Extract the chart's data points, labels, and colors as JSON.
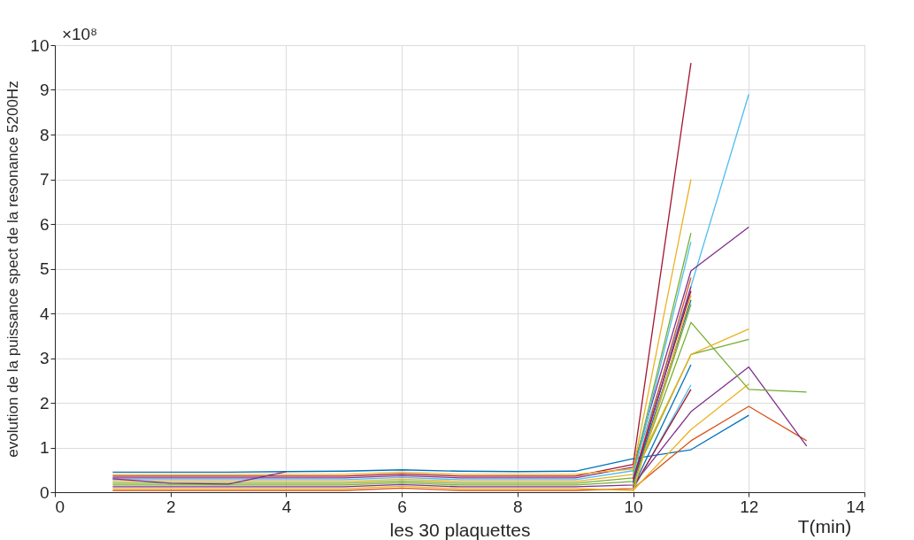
{
  "chart_data": {
    "type": "line",
    "xlabel": "les 30 plaquettes",
    "ylabel": "evolution de la puissance spect de la resonance 5200Hz",
    "annotations": [
      "T(min)",
      "×10⁸"
    ],
    "xlim": [
      0,
      14
    ],
    "xticks": [
      0,
      2,
      4,
      6,
      8,
      10,
      12,
      14
    ],
    "ylim": [
      0,
      10
    ],
    "yticks": [
      0,
      1,
      2,
      3,
      4,
      5,
      6,
      7,
      8,
      9,
      10
    ],
    "grid": true,
    "legend": false,
    "marker": "none",
    "line_style": "solid",
    "series": [
      {
        "color": "#0072bd",
        "x": [
          1,
          2,
          3,
          4,
          5,
          6,
          7,
          8,
          9,
          10,
          11,
          12
        ],
        "values": [
          0.45,
          0.45,
          0.45,
          0.46,
          0.47,
          0.5,
          0.47,
          0.46,
          0.47,
          0.75,
          0.95,
          1.72
        ]
      },
      {
        "color": "#d95319",
        "x": [
          1,
          2,
          3,
          4,
          5,
          6,
          7,
          8,
          9,
          10,
          11,
          12,
          13
        ],
        "values": [
          0.04,
          0.04,
          0.04,
          0.04,
          0.04,
          0.09,
          0.04,
          0.04,
          0.04,
          0.08,
          1.15,
          1.92,
          1.15
        ]
      },
      {
        "color": "#edb120",
        "x": [
          1,
          2,
          3,
          4,
          5,
          6,
          7,
          8,
          9,
          10,
          11,
          12
        ],
        "values": [
          0.08,
          0.08,
          0.08,
          0.08,
          0.08,
          0.13,
          0.08,
          0.08,
          0.08,
          0.04,
          1.4,
          2.42
        ]
      },
      {
        "color": "#7e2f8e",
        "x": [
          1,
          2,
          3,
          4,
          5,
          6,
          7,
          8,
          9,
          10,
          11,
          12,
          13
        ],
        "values": [
          0.12,
          0.12,
          0.12,
          0.12,
          0.12,
          0.17,
          0.12,
          0.12,
          0.12,
          0.16,
          1.8,
          2.8,
          1.03
        ]
      },
      {
        "color": "#77ac30",
        "x": [
          1,
          2,
          3,
          4,
          5,
          6,
          7,
          8,
          9,
          10,
          11,
          12,
          13
        ],
        "values": [
          0.16,
          0.16,
          0.16,
          0.16,
          0.16,
          0.21,
          0.16,
          0.16,
          0.16,
          0.24,
          3.8,
          2.3,
          2.24
        ]
      },
      {
        "color": "#77ac30",
        "x": [
          1,
          2,
          3,
          4,
          5,
          6,
          7,
          8,
          9,
          10,
          11,
          12
        ],
        "values": [
          0.2,
          0.2,
          0.2,
          0.2,
          0.2,
          0.25,
          0.2,
          0.2,
          0.2,
          0.32,
          3.08,
          3.42
        ]
      },
      {
        "color": "#edb120",
        "x": [
          1,
          2,
          3,
          4,
          5,
          6,
          7,
          8,
          9,
          10,
          11,
          12
        ],
        "values": [
          0.24,
          0.24,
          0.24,
          0.24,
          0.24,
          0.29,
          0.24,
          0.24,
          0.24,
          0.4,
          3.08,
          3.65
        ]
      },
      {
        "color": "#4dbeee",
        "x": [
          1,
          2,
          3,
          4,
          5,
          6,
          7,
          8,
          9,
          10,
          11,
          12
        ],
        "values": [
          0.28,
          0.28,
          0.28,
          0.28,
          0.28,
          0.33,
          0.28,
          0.28,
          0.28,
          0.48,
          4.6,
          8.9
        ]
      },
      {
        "color": "#7e2f8e",
        "x": [
          1,
          2,
          3,
          4,
          5,
          6,
          7,
          8,
          9,
          10,
          11,
          12
        ],
        "values": [
          0.32,
          0.32,
          0.32,
          0.32,
          0.32,
          0.37,
          0.32,
          0.32,
          0.32,
          0.56,
          4.95,
          5.93
        ]
      },
      {
        "color": "#a2142f",
        "x": [
          1,
          2,
          3,
          4,
          5,
          6,
          7,
          8,
          9,
          10,
          11
        ],
        "values": [
          0.36,
          0.36,
          0.36,
          0.36,
          0.36,
          0.41,
          0.36,
          0.36,
          0.36,
          0.62,
          9.6
        ]
      },
      {
        "color": "#edb120",
        "x": [
          1,
          2,
          3,
          4,
          5,
          6,
          7,
          8,
          9,
          10,
          11
        ],
        "values": [
          0.4,
          0.4,
          0.4,
          0.4,
          0.4,
          0.45,
          0.4,
          0.4,
          0.4,
          0.52,
          7.0
        ]
      },
      {
        "color": "#77ac30",
        "x": [
          10,
          11
        ],
        "values": [
          0.44,
          5.8
        ]
      },
      {
        "color": "#4dbeee",
        "x": [
          10,
          11
        ],
        "values": [
          0.36,
          5.6
        ]
      },
      {
        "color": "#d95319",
        "x": [
          10,
          11
        ],
        "values": [
          0.28,
          4.8
        ]
      },
      {
        "color": "#0072bd",
        "x": [
          10,
          11
        ],
        "values": [
          0.2,
          4.3
        ]
      },
      {
        "color": "#0072bd",
        "x": [
          10,
          11
        ],
        "values": [
          0.12,
          2.85
        ]
      },
      {
        "color": "#4dbeee",
        "x": [
          10,
          11
        ],
        "values": [
          0.06,
          2.4
        ]
      },
      {
        "color": "#a2142f",
        "x": [
          10,
          11
        ],
        "values": [
          0.1,
          2.3
        ]
      },
      {
        "color": "#a2142f",
        "x": [
          10,
          11
        ],
        "values": [
          0.3,
          4.5
        ]
      },
      {
        "color": "#7e2f8e",
        "x": [
          10,
          11
        ],
        "values": [
          0.22,
          4.6
        ]
      },
      {
        "color": "#77ac30",
        "x": [
          10,
          11
        ],
        "values": [
          0.14,
          4.2
        ]
      },
      {
        "color": "#edb120",
        "x": [
          10,
          11
        ],
        "values": [
          0.02,
          4.4
        ]
      },
      {
        "color": "#7e2f8e",
        "x": [
          1,
          2,
          3,
          4
        ],
        "values": [
          0.3,
          0.2,
          0.18,
          0.46
        ]
      }
    ]
  }
}
